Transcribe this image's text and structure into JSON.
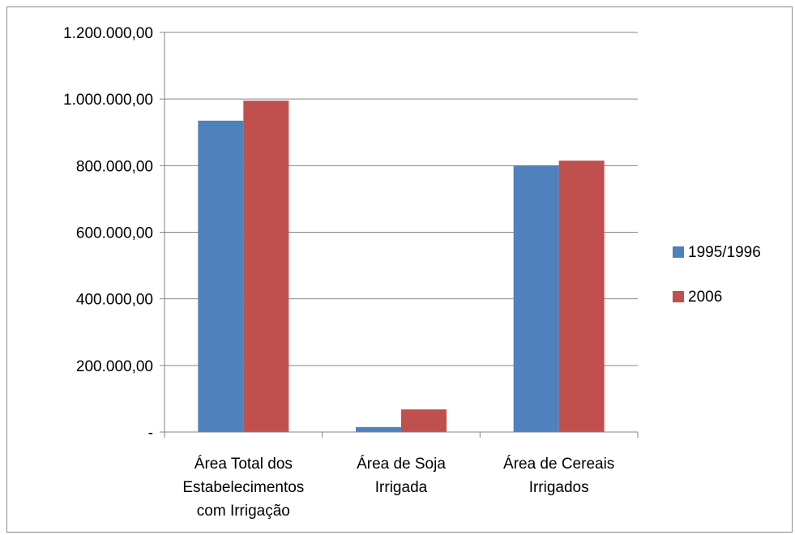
{
  "chart_data": {
    "type": "bar",
    "categories": [
      [
        "Área Total dos",
        "Estabelecimentos",
        "com Irrigação"
      ],
      [
        "Área de Soja",
        "Irrigada"
      ],
      [
        "Área de Cereais",
        "Irrigados"
      ]
    ],
    "series": [
      {
        "name": "1995/1996",
        "color": "#4F81BD",
        "values": [
          935000,
          15000,
          800000
        ]
      },
      {
        "name": "2006",
        "color": "#C0504D",
        "values": [
          995000,
          68000,
          815000
        ]
      }
    ],
    "ylim": [
      0,
      1200000
    ],
    "yticks": [
      0,
      200000,
      400000,
      600000,
      800000,
      1000000,
      1200000
    ],
    "ytick_labels": [
      "-",
      "200.000,00",
      "400.000,00",
      "600.000,00",
      "800.000,00",
      "1.000.000,00",
      "1.200.000,00"
    ],
    "grid": true,
    "legend_position": "right"
  }
}
